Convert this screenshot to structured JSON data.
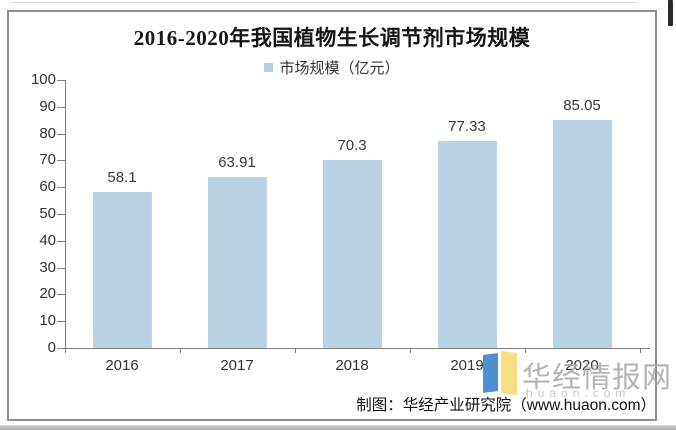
{
  "chart_data": {
    "type": "bar",
    "title": "2016-2020年我国植物生长调节剂市场规模",
    "legend": "市场规模（亿元）",
    "legend_position": "top",
    "categories": [
      "2016",
      "2017",
      "2018",
      "2019",
      "2020"
    ],
    "values": [
      58.1,
      63.91,
      70.3,
      77.33,
      85.05
    ],
    "value_labels": [
      "58.1",
      "63.91",
      "70.3",
      "77.33",
      "85.05"
    ],
    "xlabel": "",
    "ylabel": "",
    "ylim": [
      0,
      100
    ],
    "ytick_step": 10,
    "yticks": [
      0,
      10,
      20,
      30,
      40,
      50,
      60,
      70,
      80,
      90,
      100
    ],
    "grid": "off",
    "bar_color": "#b9d3e4",
    "axis_color": "#7f7f7f"
  },
  "footer": {
    "credit": "制图：华经产业研究院（www.huaon.com）"
  },
  "watermark": {
    "text": "华经情报网",
    "subtext": "huaon.com",
    "icon": "open-book-logo",
    "icon_blue": "#4e8fd0",
    "icon_yellow": "#f6df85"
  }
}
